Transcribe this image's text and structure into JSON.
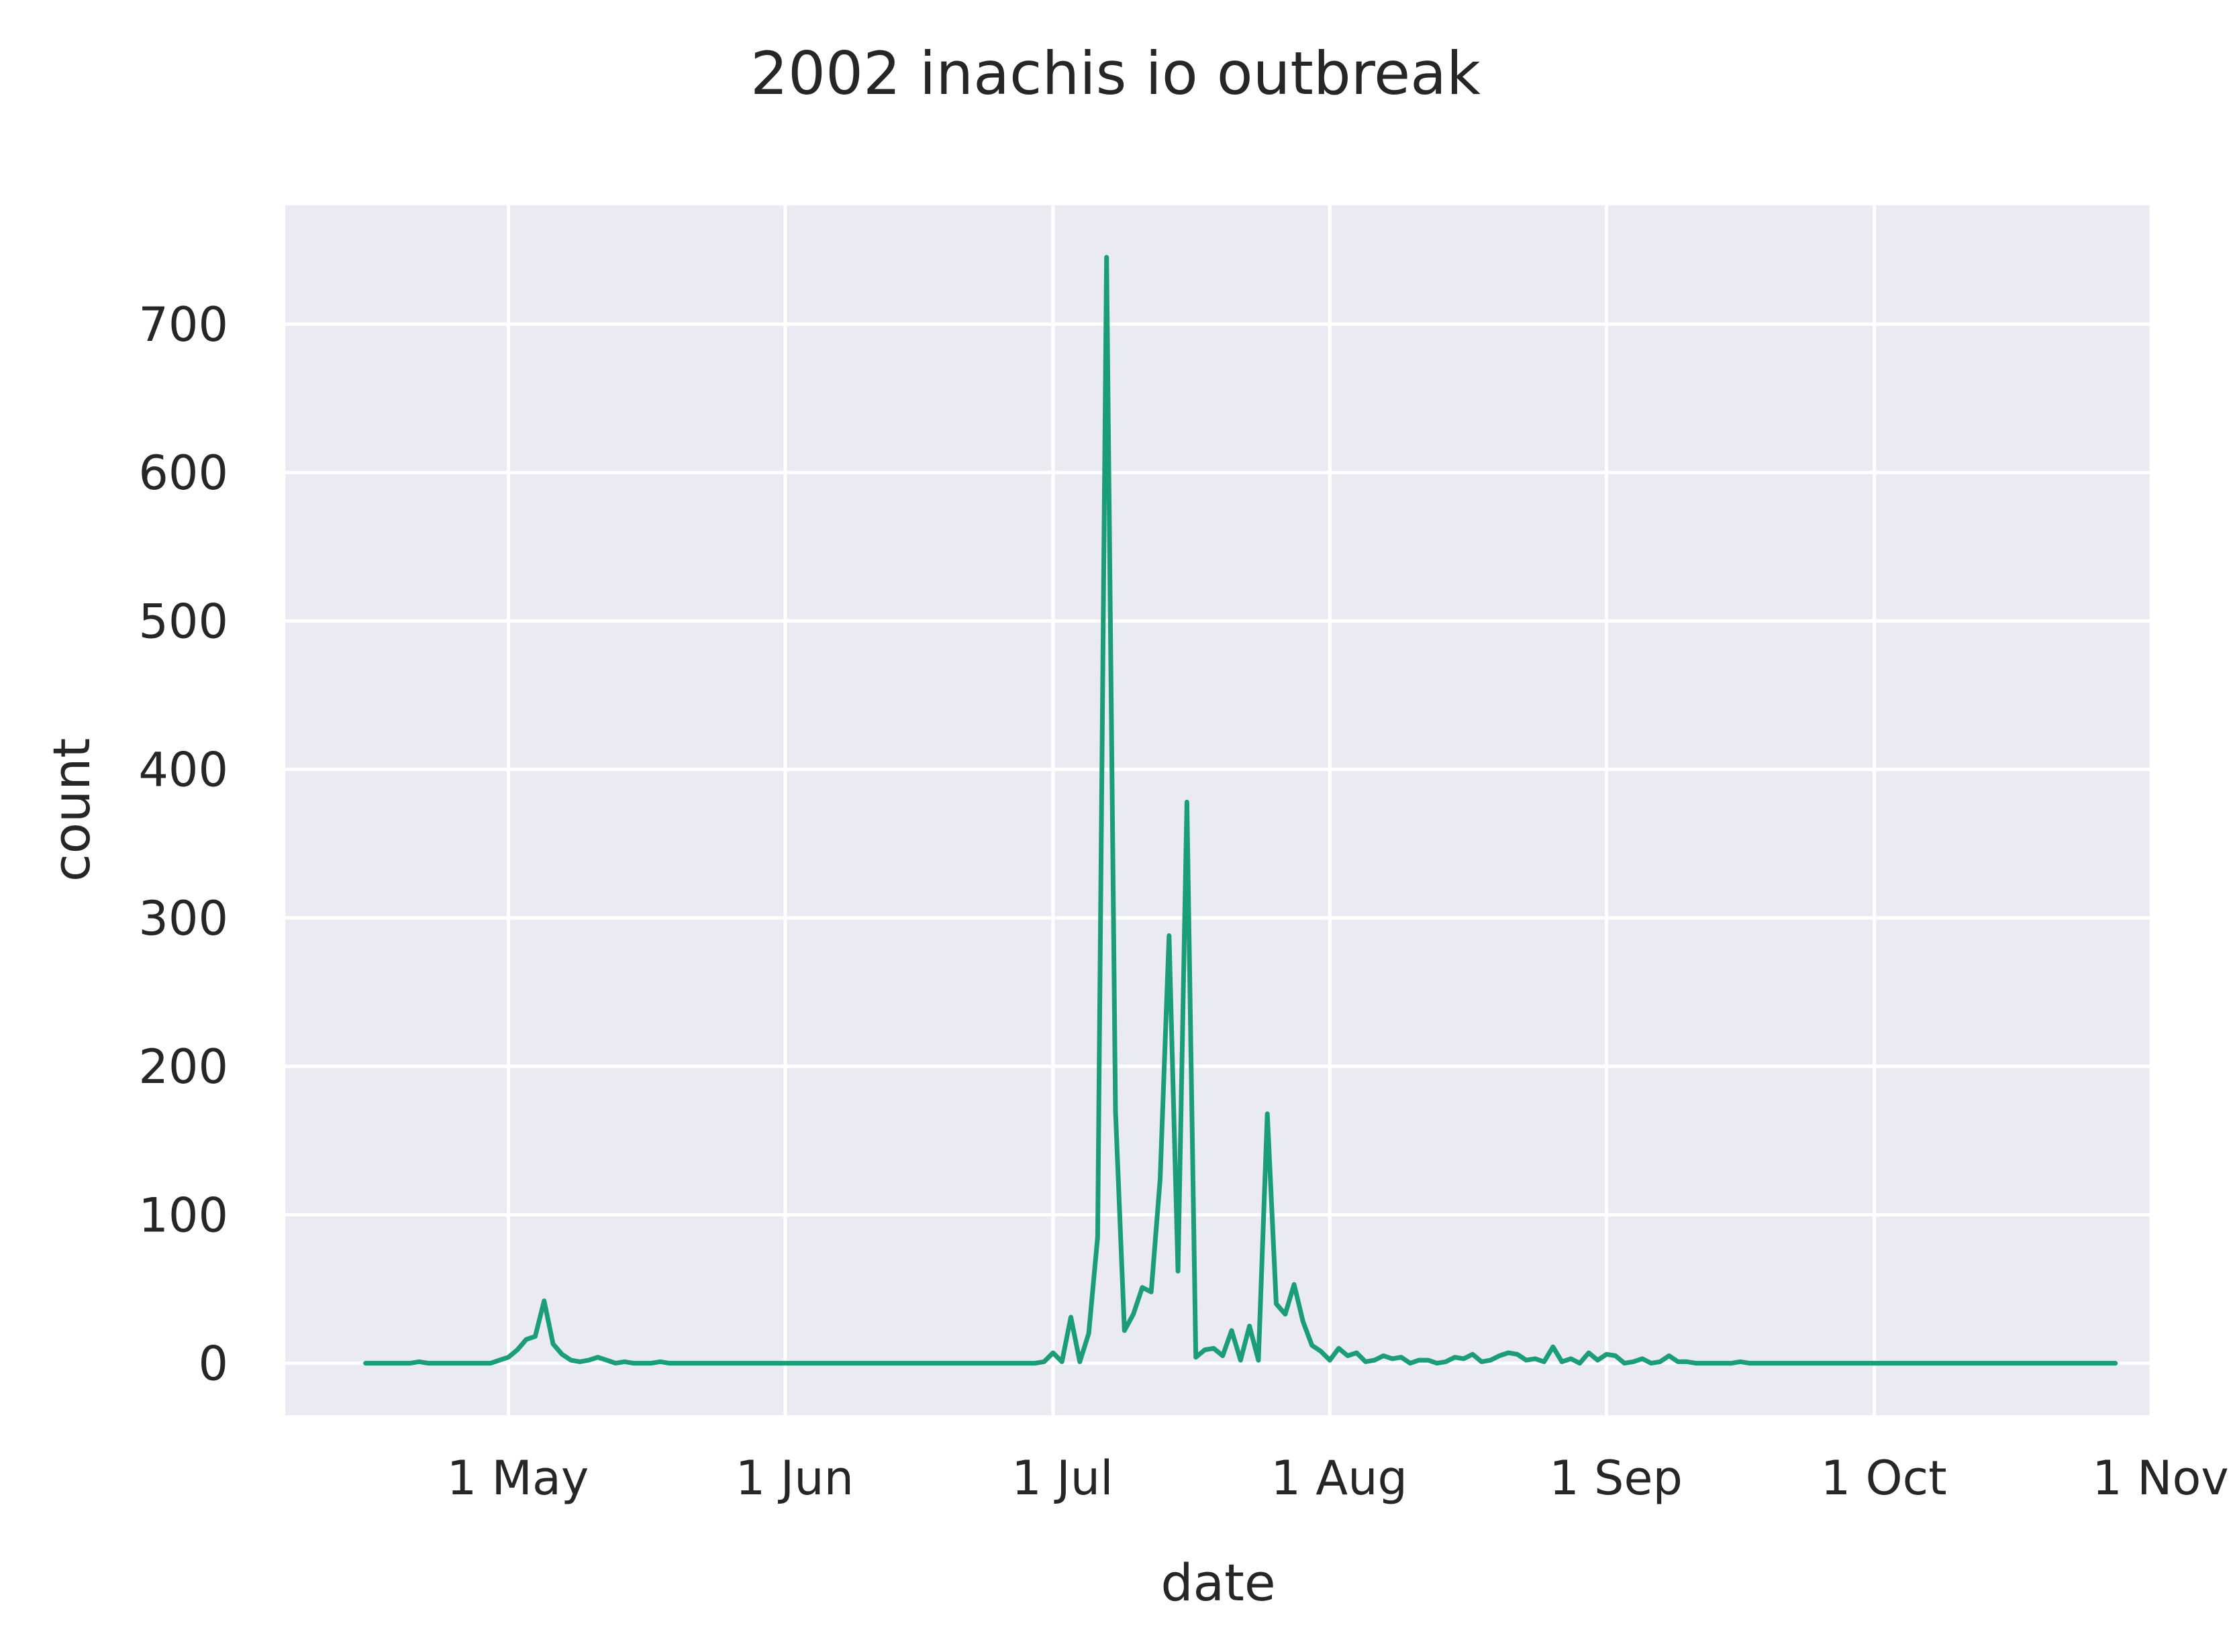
{
  "chart_data": {
    "type": "line",
    "title": "2002 inachis io outbreak",
    "xlabel": "date",
    "ylabel": "count",
    "grid": true,
    "x_ticks": [
      {
        "date": "2002-05-01",
        "label": "1 May"
      },
      {
        "date": "2002-06-01",
        "label": "1 Jun"
      },
      {
        "date": "2002-07-01",
        "label": "1 Jul"
      },
      {
        "date": "2002-08-01",
        "label": "1 Aug"
      },
      {
        "date": "2002-09-01",
        "label": "1 Sep"
      },
      {
        "date": "2002-10-01",
        "label": "1 Oct"
      },
      {
        "date": "2002-11-01",
        "label": "1 Nov"
      }
    ],
    "y_ticks": [
      0,
      100,
      200,
      300,
      400,
      500,
      600,
      700
    ],
    "xlim": [
      "2002-04-06",
      "2002-11-01"
    ],
    "ylim": [
      -35,
      780
    ],
    "colors": {
      "line": "#1b9e77",
      "plot_bg": "#eaeaf2",
      "grid": "#ffffff"
    },
    "series": [
      {
        "points": [
          [
            "2002-04-15",
            0
          ],
          [
            "2002-04-18",
            0
          ],
          [
            "2002-04-20",
            0
          ],
          [
            "2002-04-21",
            1
          ],
          [
            "2002-04-22",
            0
          ],
          [
            "2002-04-25",
            0
          ],
          [
            "2002-04-29",
            0
          ],
          [
            "2002-04-30",
            2
          ],
          [
            "2002-05-01",
            4
          ],
          [
            "2002-05-02",
            9
          ],
          [
            "2002-05-03",
            16
          ],
          [
            "2002-05-04",
            18
          ],
          [
            "2002-05-05",
            42
          ],
          [
            "2002-05-06",
            13
          ],
          [
            "2002-05-07",
            6
          ],
          [
            "2002-05-08",
            2
          ],
          [
            "2002-05-09",
            1
          ],
          [
            "2002-05-10",
            2
          ],
          [
            "2002-05-11",
            4
          ],
          [
            "2002-05-12",
            2
          ],
          [
            "2002-05-13",
            0
          ],
          [
            "2002-05-14",
            1
          ],
          [
            "2002-05-15",
            0
          ],
          [
            "2002-05-16",
            0
          ],
          [
            "2002-05-17",
            0
          ],
          [
            "2002-05-18",
            1
          ],
          [
            "2002-05-19",
            0
          ],
          [
            "2002-05-25",
            0
          ],
          [
            "2002-06-10",
            0
          ],
          [
            "2002-06-25",
            0
          ],
          [
            "2002-06-29",
            0
          ],
          [
            "2002-06-30",
            1
          ],
          [
            "2002-07-01",
            7
          ],
          [
            "2002-07-02",
            1
          ],
          [
            "2002-07-03",
            31
          ],
          [
            "2002-07-04",
            1
          ],
          [
            "2002-07-05",
            20
          ],
          [
            "2002-07-06",
            85
          ],
          [
            "2002-07-07",
            745
          ],
          [
            "2002-07-08",
            170
          ],
          [
            "2002-07-09",
            22
          ],
          [
            "2002-07-10",
            33
          ],
          [
            "2002-07-11",
            51
          ],
          [
            "2002-07-12",
            48
          ],
          [
            "2002-07-13",
            124
          ],
          [
            "2002-07-14",
            288
          ],
          [
            "2002-07-15",
            62
          ],
          [
            "2002-07-16",
            378
          ],
          [
            "2002-07-17",
            4
          ],
          [
            "2002-07-18",
            9
          ],
          [
            "2002-07-19",
            10
          ],
          [
            "2002-07-20",
            5
          ],
          [
            "2002-07-21",
            22
          ],
          [
            "2002-07-22",
            2
          ],
          [
            "2002-07-23",
            25
          ],
          [
            "2002-07-24",
            2
          ],
          [
            "2002-07-25",
            168
          ],
          [
            "2002-07-26",
            40
          ],
          [
            "2002-07-27",
            33
          ],
          [
            "2002-07-28",
            53
          ],
          [
            "2002-07-29",
            28
          ],
          [
            "2002-07-30",
            12
          ],
          [
            "2002-07-31",
            8
          ],
          [
            "2002-08-01",
            2
          ],
          [
            "2002-08-02",
            10
          ],
          [
            "2002-08-03",
            5
          ],
          [
            "2002-08-04",
            7
          ],
          [
            "2002-08-05",
            1
          ],
          [
            "2002-08-06",
            2
          ],
          [
            "2002-08-07",
            5
          ],
          [
            "2002-08-08",
            3
          ],
          [
            "2002-08-09",
            4
          ],
          [
            "2002-08-10",
            0
          ],
          [
            "2002-08-11",
            2
          ],
          [
            "2002-08-12",
            2
          ],
          [
            "2002-08-13",
            0
          ],
          [
            "2002-08-14",
            1
          ],
          [
            "2002-08-15",
            4
          ],
          [
            "2002-08-16",
            3
          ],
          [
            "2002-08-17",
            6
          ],
          [
            "2002-08-18",
            1
          ],
          [
            "2002-08-19",
            2
          ],
          [
            "2002-08-20",
            5
          ],
          [
            "2002-08-21",
            7
          ],
          [
            "2002-08-22",
            6
          ],
          [
            "2002-08-23",
            2
          ],
          [
            "2002-08-24",
            3
          ],
          [
            "2002-08-25",
            1
          ],
          [
            "2002-08-26",
            11
          ],
          [
            "2002-08-27",
            1
          ],
          [
            "2002-08-28",
            3
          ],
          [
            "2002-08-29",
            0
          ],
          [
            "2002-08-30",
            7
          ],
          [
            "2002-08-31",
            2
          ],
          [
            "2002-09-01",
            6
          ],
          [
            "2002-09-02",
            5
          ],
          [
            "2002-09-03",
            0
          ],
          [
            "2002-09-04",
            1
          ],
          [
            "2002-09-05",
            3
          ],
          [
            "2002-09-06",
            0
          ],
          [
            "2002-09-07",
            1
          ],
          [
            "2002-09-08",
            5
          ],
          [
            "2002-09-09",
            1
          ],
          [
            "2002-09-10",
            1
          ],
          [
            "2002-09-11",
            0
          ],
          [
            "2002-09-15",
            0
          ],
          [
            "2002-09-16",
            1
          ],
          [
            "2002-09-17",
            0
          ],
          [
            "2002-09-25",
            0
          ],
          [
            "2002-10-10",
            0
          ],
          [
            "2002-10-20",
            0
          ],
          [
            "2002-10-28",
            0
          ]
        ]
      }
    ]
  }
}
